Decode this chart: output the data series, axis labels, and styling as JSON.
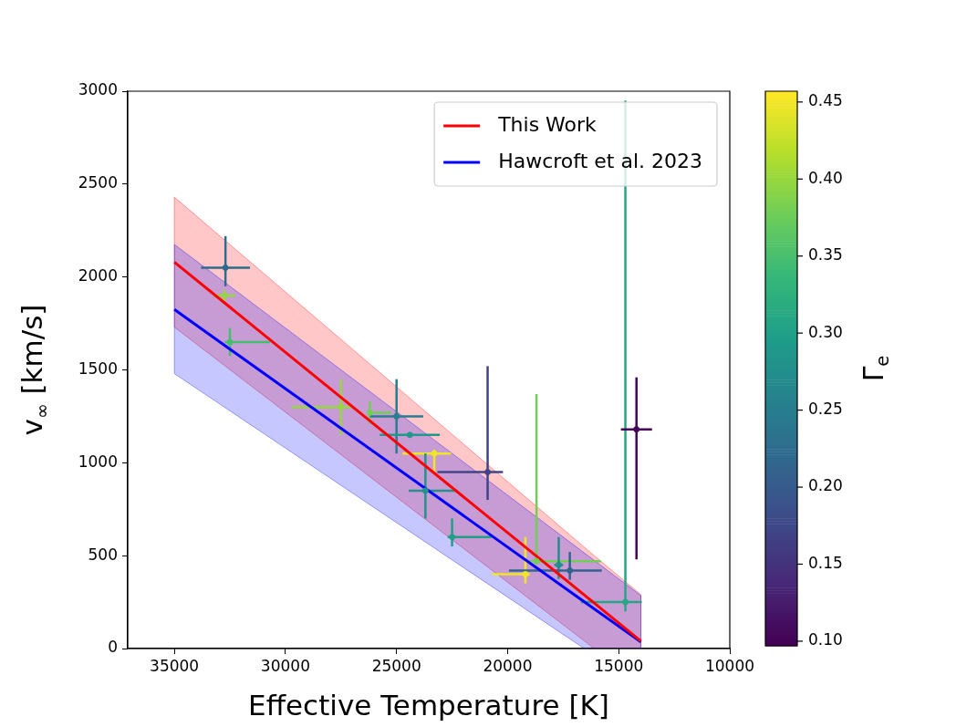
{
  "chart_data": {
    "type": "scatter",
    "xlabel": "Effective Temperature [K]",
    "ylabel": "v$_{∞}$ [km/s]",
    "clabel": "Γ$_{e}$",
    "xlim": [
      37100,
      10000
    ],
    "xticks": [
      35000,
      30000,
      25000,
      20000,
      15000,
      10000
    ],
    "ylim": [
      0,
      3000
    ],
    "yticks": [
      0,
      500,
      1000,
      1500,
      2000,
      2500,
      3000
    ],
    "clim": [
      0.097,
      0.457
    ],
    "cticks": [
      {
        "value": 0.1,
        "label": "0.10"
      },
      {
        "value": 0.15,
        "label": "0.15"
      },
      {
        "value": 0.2,
        "label": "0.20"
      },
      {
        "value": 0.25,
        "label": "0.25"
      },
      {
        "value": 0.3,
        "label": "0.30"
      },
      {
        "value": 0.35,
        "label": "0.35"
      },
      {
        "value": 0.4,
        "label": "0.40"
      },
      {
        "value": 0.45,
        "label": "0.45"
      }
    ],
    "grid": false,
    "legend": "top right",
    "series": [
      {
        "type": "scatter",
        "x": [
          32700,
          32750,
          32500,
          27500,
          26200,
          25000,
          24400,
          23300,
          23700,
          20900,
          22500,
          19200,
          18700,
          17700,
          17200,
          14700,
          14200
        ],
        "values": [
          2050,
          1900,
          1650,
          1300,
          1270,
          1250,
          1150,
          1050,
          850,
          950,
          600,
          400,
          470,
          450,
          420,
          250,
          1180
        ],
        "xerrors": [
          1100,
          500,
          [
            30700,
            32730
          ],
          [
            27060,
            29730
          ],
          [
            25240,
            26200
          ],
          1200,
          1350,
          [
            22550,
            24740
          ],
          [
            22260,
            24450
          ],
          [
            20210,
            23160
          ],
          [
            20720,
            22700
          ],
          [
            19000,
            20710
          ],
          [
            15800,
            19020
          ],
          200,
          [
            15760,
            19940
          ],
          [
            13960,
            16700
          ],
          700
        ],
        "errors": [
          [
            1950,
            2220
          ],
          30,
          75,
          150,
          60,
          200,
          null,
          [
            950,
            1070
          ],
          [
            700,
            1050
          ],
          [
            800,
            1520
          ],
          [
            550,
            700
          ],
          [
            350,
            600
          ],
          [
            470,
            1370
          ],
          [
            375,
            600
          ],
          [
            370,
            520
          ],
          [
            200,
            2950
          ],
          [
            480,
            1460
          ]
        ],
        "colors": [
          "#306a8e",
          "#96d73f",
          "#47be6f",
          "#96d73f",
          "#72ce56",
          "#287d8e",
          "#20998a",
          "#f0e526",
          "#22928b",
          "#404486",
          "#21a088",
          "#f0e526",
          "#72ce56",
          "#248b8c",
          "#33638d",
          "#26a684",
          "#440457"
        ],
        "cvalues": [
          0.22,
          0.4,
          0.35,
          0.4,
          0.38,
          0.25,
          0.29,
          0.45,
          0.28,
          0.17,
          0.3,
          0.45,
          0.38,
          0.27,
          0.21,
          0.31,
          0.1
        ]
      },
      {
        "type": "line",
        "name": "This Work",
        "color": "#ff0000",
        "x": [
          35000,
          16100,
          14000
        ],
        "values": [
          2080,
          245,
          40
        ],
        "lower": [
          1730,
          0,
          0
        ],
        "upper": [
          2430,
          500,
          290
        ]
      },
      {
        "type": "line",
        "name": "Hawcroft et al. 2023",
        "color": "#0000ff",
        "x": [
          35000,
          16550,
          14000
        ],
        "values": [
          1825,
          252,
          35
        ],
        "lower": [
          1480,
          0,
          0
        ],
        "upper": [
          2175,
          515,
          285
        ]
      }
    ]
  }
}
